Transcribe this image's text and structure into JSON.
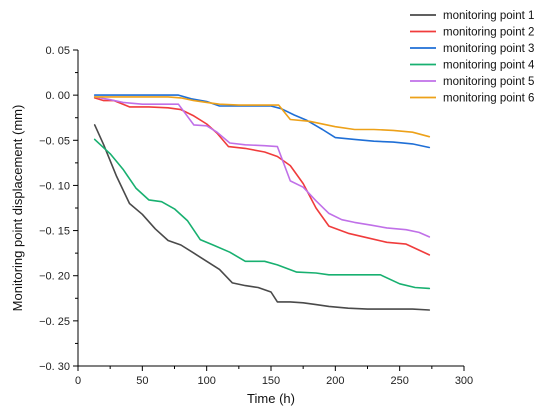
{
  "chart_data": {
    "type": "line",
    "xlabel": "Time  (h)",
    "ylabel": "Monitoring point displacement  (mm)",
    "xlim": [
      0,
      300
    ],
    "ylim": [
      -0.3,
      0.05
    ],
    "xticks": [
      0,
      50,
      100,
      150,
      200,
      250,
      300
    ],
    "yticks": [
      0.05,
      0.0,
      -0.05,
      -0.1,
      -0.15,
      -0.2,
      -0.25,
      -0.3
    ],
    "xtick_labels": [
      "0",
      "50",
      "100",
      "150",
      "200",
      "250",
      "300"
    ],
    "ytick_labels": [
      "0. 05",
      "0. 00",
      "−0. 05",
      "−0. 10",
      "−0. 15",
      "−0. 20",
      "−0. 25",
      "−0. 30"
    ],
    "grid": false,
    "legend_position": "top-right",
    "series": [
      {
        "name": "monitoring point 1",
        "color": "#4a4a4a",
        "x": [
          13,
          20,
          30,
          40,
          50,
          60,
          70,
          80,
          90,
          100,
          110,
          120,
          130,
          140,
          150,
          155,
          165,
          175,
          185,
          195,
          210,
          225,
          240,
          260,
          273
        ],
        "y": [
          -0.033,
          -0.055,
          -0.09,
          -0.12,
          -0.132,
          -0.148,
          -0.161,
          -0.166,
          -0.175,
          -0.184,
          -0.193,
          -0.208,
          -0.211,
          -0.213,
          -0.218,
          -0.229,
          -0.229,
          -0.23,
          -0.232,
          -0.234,
          -0.236,
          -0.237,
          -0.237,
          -0.237,
          -0.238
        ]
      },
      {
        "name": "monitoring point 2",
        "color": "#f03c3c",
        "x": [
          13,
          20,
          28,
          40,
          55,
          70,
          80,
          90,
          100,
          108,
          117,
          130,
          145,
          155,
          165,
          175,
          185,
          195,
          210,
          225,
          240,
          255,
          273
        ],
        "y": [
          -0.003,
          -0.006,
          -0.006,
          -0.013,
          -0.013,
          -0.014,
          -0.016,
          -0.023,
          -0.032,
          -0.042,
          -0.057,
          -0.059,
          -0.063,
          -0.068,
          -0.078,
          -0.098,
          -0.125,
          -0.145,
          -0.153,
          -0.158,
          -0.163,
          -0.165,
          -0.177
        ]
      },
      {
        "name": "monitoring point 3",
        "color": "#1f6fd6",
        "x": [
          13,
          30,
          50,
          65,
          78,
          88,
          100,
          110,
          120,
          135,
          150,
          158,
          168,
          178,
          190,
          200,
          215,
          230,
          245,
          260,
          273
        ],
        "y": [
          0.0,
          0.0,
          0.0,
          0.0,
          0.0,
          -0.004,
          -0.007,
          -0.012,
          -0.012,
          -0.012,
          -0.012,
          -0.015,
          -0.022,
          -0.028,
          -0.038,
          -0.047,
          -0.049,
          -0.051,
          -0.052,
          -0.054,
          -0.058
        ]
      },
      {
        "name": "monitoring point 4",
        "color": "#18b070",
        "x": [
          13,
          25,
          35,
          45,
          55,
          65,
          75,
          85,
          95,
          105,
          118,
          130,
          145,
          155,
          170,
          185,
          195,
          210,
          225,
          235,
          250,
          262,
          273
        ],
        "y": [
          -0.049,
          -0.065,
          -0.082,
          -0.103,
          -0.116,
          -0.118,
          -0.126,
          -0.139,
          -0.16,
          -0.166,
          -0.174,
          -0.184,
          -0.184,
          -0.188,
          -0.196,
          -0.197,
          -0.199,
          -0.199,
          -0.199,
          -0.199,
          -0.209,
          -0.213,
          -0.214
        ]
      },
      {
        "name": "monitoring point 5",
        "color": "#c070e8",
        "x": [
          13,
          25,
          35,
          50,
          65,
          78,
          90,
          100,
          108,
          118,
          130,
          145,
          155,
          165,
          175,
          185,
          195,
          205,
          215,
          228,
          240,
          255,
          265,
          273
        ],
        "y": [
          -0.002,
          -0.005,
          -0.008,
          -0.01,
          -0.01,
          -0.01,
          -0.033,
          -0.034,
          -0.041,
          -0.053,
          -0.055,
          -0.056,
          -0.057,
          -0.095,
          -0.102,
          -0.117,
          -0.131,
          -0.138,
          -0.141,
          -0.144,
          -0.147,
          -0.149,
          -0.152,
          -0.157
        ]
      },
      {
        "name": "monitoring point 6",
        "color": "#eda119",
        "x": [
          13,
          30,
          50,
          70,
          80,
          90,
          100,
          110,
          125,
          140,
          150,
          156,
          165,
          180,
          200,
          215,
          230,
          245,
          260,
          273
        ],
        "y": [
          -0.002,
          -0.002,
          -0.002,
          -0.002,
          -0.003,
          -0.006,
          -0.008,
          -0.01,
          -0.011,
          -0.011,
          -0.011,
          -0.011,
          -0.027,
          -0.029,
          -0.035,
          -0.038,
          -0.038,
          -0.039,
          -0.041,
          -0.046
        ]
      }
    ]
  }
}
